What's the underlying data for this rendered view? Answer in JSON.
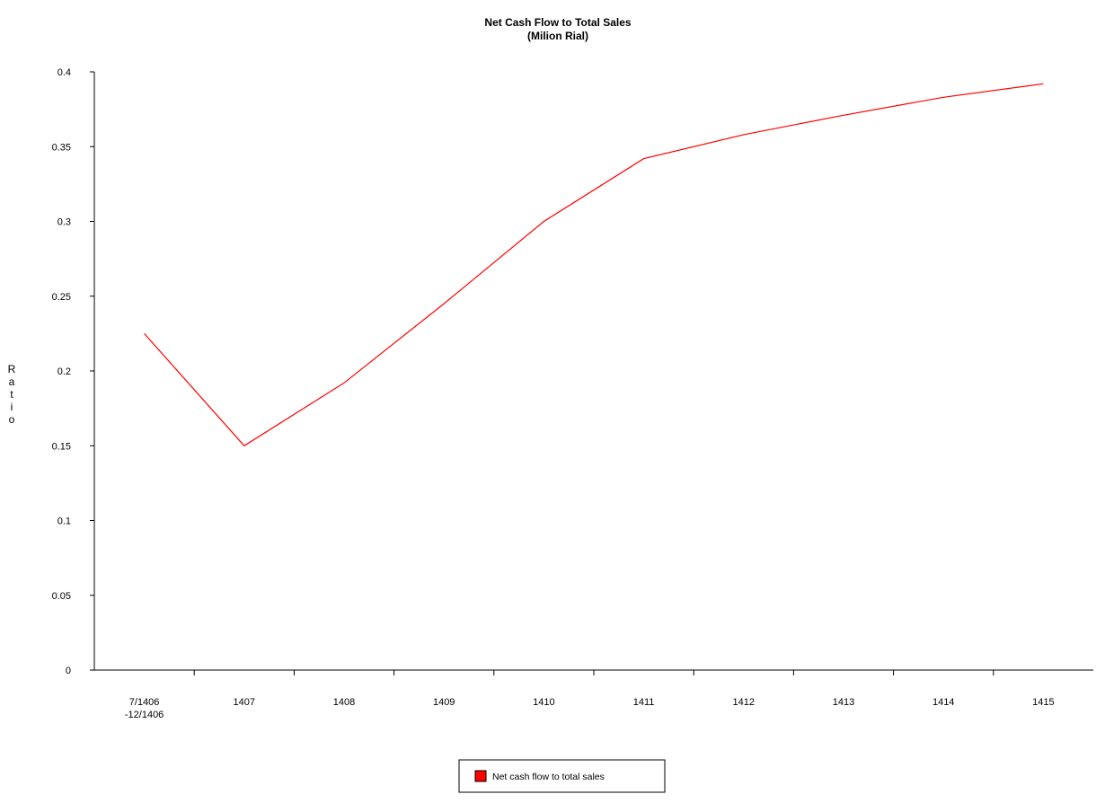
{
  "chart_data": {
    "type": "line",
    "title": "Net Cash Flow to Total Sales",
    "subtitle": "(Milion Rial)",
    "ylabel": "Ratio",
    "xlabel": "",
    "categories": [
      [
        "7/1406",
        "-12/1406"
      ],
      [
        "1407"
      ],
      [
        "1408"
      ],
      [
        "1409"
      ],
      [
        "1410"
      ],
      [
        "1411"
      ],
      [
        "1412"
      ],
      [
        "1413"
      ],
      [
        "1414"
      ],
      [
        "1415"
      ]
    ],
    "y_ticks": [
      "0",
      "0.05",
      "0.1",
      "0.15",
      "0.2",
      "0.25",
      "0.3",
      "0.35",
      "0.4"
    ],
    "ylim": [
      0,
      0.4
    ],
    "grid": false,
    "legend_position": "bottom",
    "series": [
      {
        "name": "Net cash flow to total sales",
        "color": "#ff0000",
        "values": [
          0.225,
          0.15,
          0.192,
          0.245,
          0.3,
          0.342,
          0.358,
          0.371,
          0.383,
          0.392
        ]
      }
    ]
  }
}
